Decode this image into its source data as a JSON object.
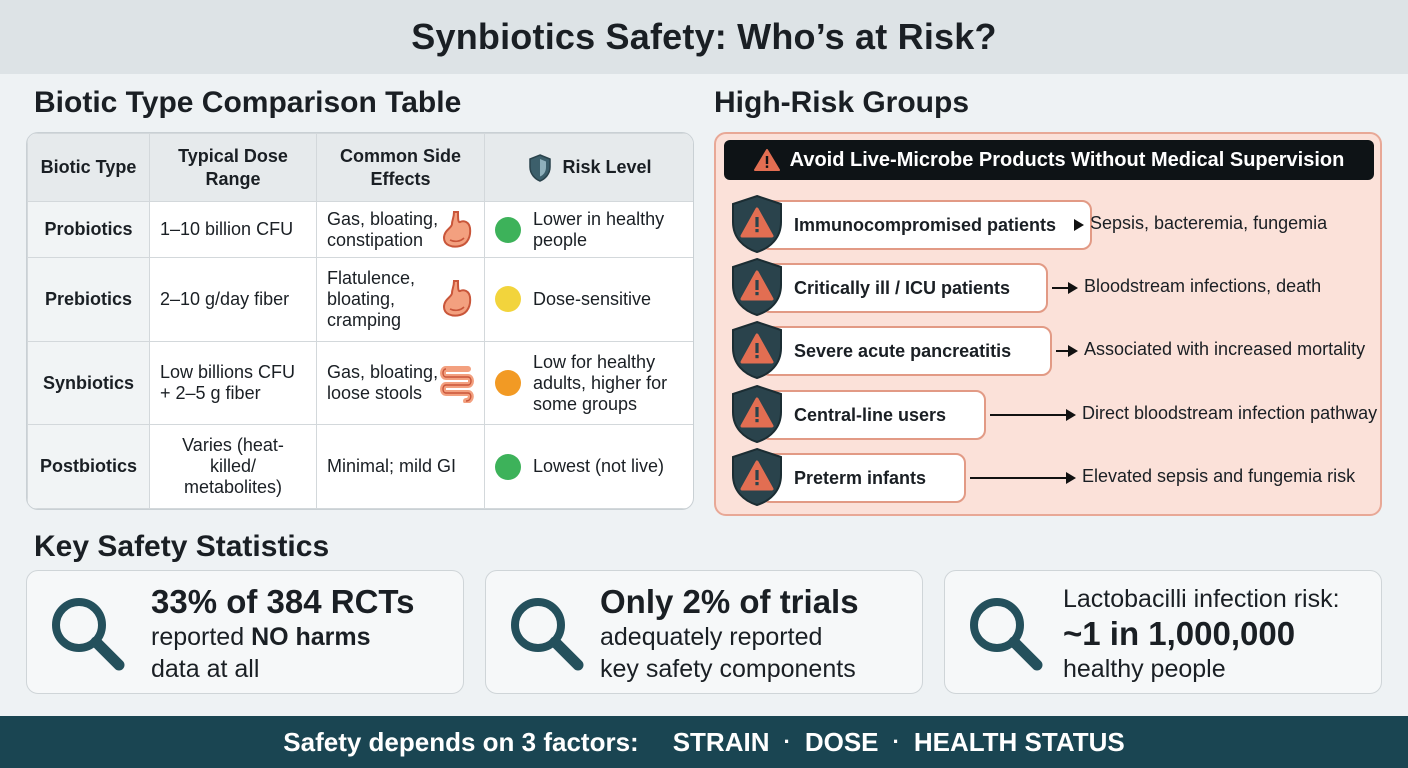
{
  "title": "Synbiotics Safety: Who’s at Risk?",
  "comparison": {
    "heading": "Biotic Type Comparison Table",
    "headers": [
      "Biotic Type",
      "Typical Dose Range",
      "Common Side Effects",
      "Risk Level"
    ],
    "rows": [
      {
        "type": "Probiotics",
        "dose": "1–10 billion CFU",
        "side_effects": "Gas, bloating, constipation",
        "organ_icon": "stomach-icon",
        "risk": "Lower in healthy people",
        "risk_color": "#3db25a"
      },
      {
        "type": "Prebiotics",
        "dose": "2–10 g/day fiber",
        "side_effects": "Flatulence, bloating, cramping",
        "organ_icon": "stomach-icon",
        "risk": "Dose-sensitive",
        "risk_color": "#f2d43c"
      },
      {
        "type": "Synbiotics",
        "dose": "Low billions CFU + 2–5 g fiber",
        "side_effects": "Gas, bloating, loose stools",
        "organ_icon": "intestine-icon",
        "risk": "Low for healthy adults, higher for some groups",
        "risk_color": "#f29a24"
      },
      {
        "type": "Postbiotics",
        "dose": "Varies (heat-killed/ metabolites)",
        "side_effects": "Minimal; mild GI",
        "organ_icon": "",
        "risk": "Lowest (not live)",
        "risk_color": "#3db25a"
      }
    ]
  },
  "high_risk": {
    "heading": "High-Risk Groups",
    "banner": "Avoid Live-Microbe Products Without Medical Supervision",
    "groups": [
      {
        "group": "Immunocompromised patients",
        "outcome": "Sepsis, bacteremia, fungemia"
      },
      {
        "group": "Critically ill / ICU patients",
        "outcome": "Bloodstream infections, death"
      },
      {
        "group": "Severe acute pancreatitis",
        "outcome": "Associated with increased mortality"
      },
      {
        "group": "Central-line users",
        "outcome": "Direct bloodstream infection pathway"
      },
      {
        "group": "Preterm infants",
        "outcome": "Elevated sepsis and fungemia risk"
      }
    ]
  },
  "stats": {
    "heading": "Key Safety Statistics",
    "cards": [
      {
        "big": "33% of 384 RCTs",
        "line1_pre": "reported ",
        "line1_bold": "NO harms",
        "line2": "data at all"
      },
      {
        "big": "Only 2% of trials",
        "line1": "adequately reported",
        "line2": "key safety components"
      },
      {
        "line0": "Lactobacilli infection risk:",
        "big": "~1 in 1,000,000",
        "line2": "healthy people"
      }
    ]
  },
  "footer": {
    "lead": "Safety depends on 3 factors:",
    "factors": [
      "STRAIN",
      "DOSE",
      "HEALTH STATUS"
    ],
    "separator": "·"
  },
  "colors": {
    "banner_bg": "#0e1316",
    "footer_bg": "#1a4552",
    "panel_bg": "#fbe1d9",
    "shield": "#2a434c",
    "warning": "#e26e52"
  }
}
